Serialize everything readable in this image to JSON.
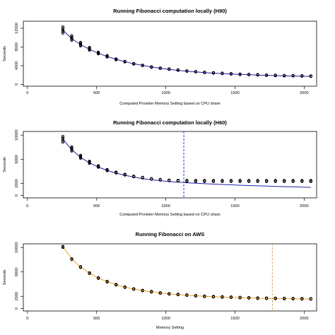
{
  "chart_data": [
    {
      "type": "scatter",
      "title": "Running Fibonacci computation locally (H90)",
      "xlabel": "Computed Provider Memory Setting based on CPU share",
      "ylabel": "Seconds",
      "xlim": [
        -30,
        2090
      ],
      "ylim": [
        -400,
        13500
      ],
      "xticks": [
        0,
        500,
        1000,
        1500,
        2000
      ],
      "yticks": [
        0,
        4000,
        8000,
        12000
      ],
      "points_color": "#000000",
      "fit_color": "#1f1fb0",
      "vline": null,
      "vline_color": null,
      "x": [
        256,
        320,
        384,
        448,
        512,
        576,
        640,
        704,
        768,
        832,
        896,
        960,
        1024,
        1088,
        1152,
        1216,
        1280,
        1344,
        1408,
        1472,
        1536,
        1600,
        1664,
        1728,
        1792,
        1856,
        1920,
        1984,
        2048
      ],
      "y_median": [
        11600,
        9900,
        8600,
        7600,
        6700,
        6000,
        5350,
        4850,
        4400,
        4050,
        3700,
        3450,
        3250,
        3050,
        2850,
        2700,
        2550,
        2450,
        2350,
        2250,
        2150,
        2100,
        2050,
        1950,
        1900,
        1850,
        1850,
        1800,
        1750
      ],
      "y_spread": [
        1400,
        1000,
        800,
        600,
        350,
        300,
        200,
        150,
        100,
        100,
        100,
        100,
        100,
        100,
        100,
        100,
        100,
        100,
        100,
        100,
        100,
        100,
        100,
        100,
        100,
        100,
        100,
        100,
        100
      ],
      "fit_y": [
        11600,
        9800,
        8500,
        7500,
        6650,
        5950,
        5350,
        4850,
        4400,
        4050,
        3700,
        3450,
        3200,
        3000,
        2800,
        2650,
        2500,
        2400,
        2300,
        2200,
        2120,
        2050,
        1980,
        1920,
        1860,
        1810,
        1770,
        1730,
        1700
      ]
    },
    {
      "type": "scatter",
      "title": "Running Fibonacci computation locally (H60)",
      "xlabel": "Computed Provider Memory Setting based on CPU share",
      "ylabel": "Seconds",
      "xlim": [
        -30,
        2090
      ],
      "ylim": [
        -400,
        10600
      ],
      "xticks": [
        0,
        500,
        1000,
        1500,
        2000
      ],
      "yticks": [
        0,
        2000,
        6000,
        10000
      ],
      "points_color": "#000000",
      "fit_color": "#1f1fb0",
      "vline": 1130,
      "vline_color": "#1f1fb0",
      "x": [
        256,
        320,
        384,
        448,
        512,
        576,
        640,
        704,
        768,
        832,
        896,
        960,
        1024,
        1088,
        1152,
        1216,
        1280,
        1344,
        1408,
        1472,
        1536,
        1600,
        1664,
        1728,
        1792,
        1856,
        1920,
        1984,
        2048
      ],
      "y_median": [
        9300,
        7700,
        6400,
        5500,
        4800,
        4200,
        3800,
        3450,
        3150,
        2950,
        2750,
        2600,
        2500,
        2450,
        2400,
        2400,
        2400,
        2400,
        2400,
        2400,
        2400,
        2400,
        2400,
        2400,
        2400,
        2400,
        2400,
        2400,
        2400
      ],
      "y_spread": [
        1000,
        700,
        500,
        350,
        250,
        200,
        150,
        150,
        100,
        100,
        100,
        100,
        100,
        100,
        150,
        150,
        150,
        150,
        150,
        150,
        150,
        150,
        150,
        150,
        150,
        150,
        150,
        150,
        150
      ],
      "fit_y": [
        9300,
        7600,
        6300,
        5400,
        4700,
        4150,
        3700,
        3350,
        3050,
        2800,
        2600,
        2450,
        2300,
        2200,
        2100,
        2020,
        1950,
        1880,
        1820,
        1760,
        1700,
        1650,
        1600,
        1550,
        1500,
        1460,
        1420,
        1380,
        1340
      ]
    },
    {
      "type": "scatter",
      "title": "Running Fibonacci on AWS",
      "xlabel": "Memory Setting",
      "ylabel": "Seconds",
      "xlim": [
        -30,
        2090
      ],
      "ylim": [
        -400,
        10600
      ],
      "xticks": [
        0,
        500,
        1000,
        1500,
        2000
      ],
      "yticks": [
        0,
        2000,
        6000,
        10000
      ],
      "points_color": "#000000",
      "fit_color": "#f0a020",
      "vline": 1770,
      "vline_color": "#f0a020",
      "x": [
        256,
        320,
        384,
        448,
        512,
        576,
        640,
        704,
        768,
        832,
        896,
        960,
        1024,
        1088,
        1152,
        1216,
        1280,
        1344,
        1408,
        1472,
        1536,
        1600,
        1664,
        1728,
        1792,
        1856,
        1920,
        1984,
        2048
      ],
      "y_median": [
        10100,
        8100,
        6800,
        5800,
        5000,
        4400,
        3900,
        3500,
        3200,
        2950,
        2750,
        2550,
        2400,
        2300,
        2200,
        2100,
        2000,
        1950,
        1900,
        1850,
        1800,
        1750,
        1700,
        1680,
        1660,
        1640,
        1620,
        1600,
        1580
      ],
      "y_spread": [
        150,
        100,
        100,
        100,
        100,
        100,
        100,
        80,
        80,
        80,
        80,
        80,
        80,
        80,
        80,
        80,
        80,
        80,
        80,
        80,
        80,
        80,
        80,
        80,
        80,
        80,
        80,
        80,
        80
      ],
      "fit_y": [
        10100,
        8150,
        6800,
        5800,
        5000,
        4400,
        3900,
        3500,
        3200,
        2950,
        2750,
        2550,
        2400,
        2280,
        2180,
        2090,
        2010,
        1940,
        1880,
        1830,
        1780,
        1740,
        1700,
        1670,
        1640,
        1620,
        1600,
        1580,
        1560
      ]
    }
  ]
}
